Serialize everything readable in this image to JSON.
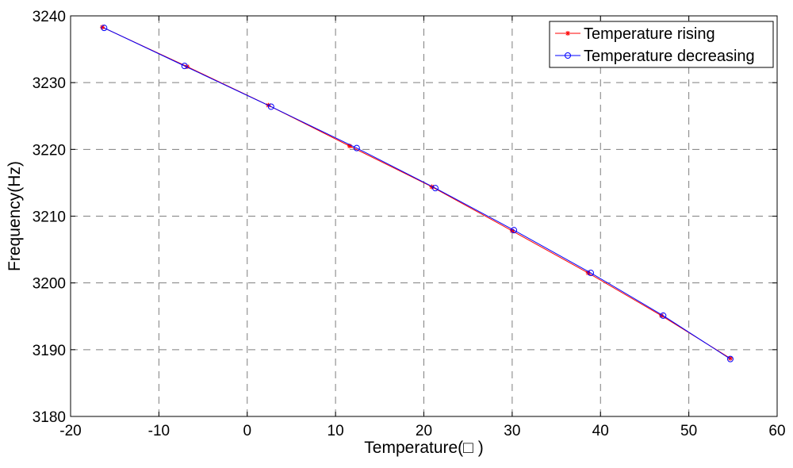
{
  "chart_data": {
    "type": "line",
    "title": "",
    "xlabel": "Temperature(□ )",
    "ylabel": "Frequency(Hz)",
    "xlim": [
      -20,
      60
    ],
    "ylim": [
      3180,
      3240
    ],
    "x_ticks": [
      -20,
      -10,
      0,
      10,
      20,
      30,
      40,
      50,
      60
    ],
    "y_ticks": [
      3180,
      3190,
      3200,
      3210,
      3220,
      3230,
      3240
    ],
    "x_tick_labels": [
      "-20",
      "-10",
      "0",
      "10",
      "20",
      "30",
      "40",
      "50",
      "60"
    ],
    "y_tick_labels": [
      "3180",
      "3190",
      "3200",
      "3210",
      "3220",
      "3230",
      "3240"
    ],
    "grid": true,
    "legend_position": "top-right",
    "series": [
      {
        "name": "Temperature rising",
        "color": "#ff0000",
        "marker": "star",
        "x": [
          -16.4,
          -6.8,
          2.4,
          11.6,
          20.9,
          30.0,
          38.6,
          46.9,
          54.7
        ],
        "y": [
          3238.3,
          3232.4,
          3226.6,
          3220.5,
          3214.4,
          3207.8,
          3201.5,
          3195.1,
          3188.7
        ]
      },
      {
        "name": "Temperature decreasing",
        "color": "#0000ff",
        "marker": "circle",
        "x": [
          -16.2,
          -7.1,
          2.7,
          12.4,
          21.3,
          30.2,
          38.9,
          47.1,
          54.7
        ],
        "y": [
          3238.2,
          3232.5,
          3226.4,
          3220.2,
          3214.2,
          3207.9,
          3201.5,
          3195.1,
          3188.6
        ]
      }
    ]
  }
}
